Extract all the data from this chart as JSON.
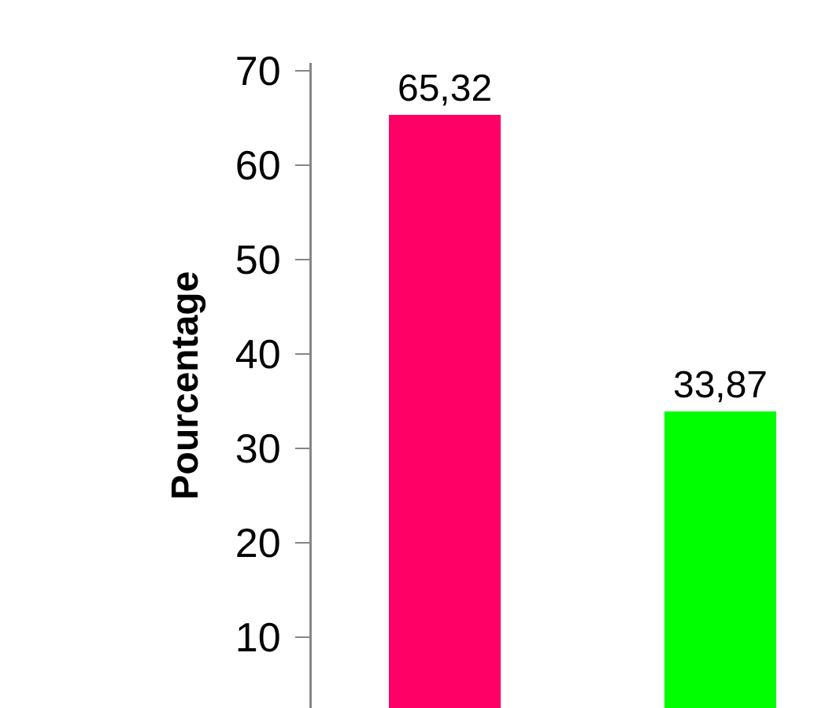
{
  "chart_data": {
    "type": "bar",
    "ylabel": "Pourcentage",
    "categories": [
      null,
      null
    ],
    "values": [
      65.32,
      33.87
    ],
    "colors": [
      "#ff0066",
      "#00ff00"
    ],
    "value_labels": [
      "65,32",
      "33,87"
    ],
    "ylim": [
      2.5,
      70.8
    ],
    "yticks": [
      10,
      20,
      30,
      40,
      50,
      60,
      70
    ],
    "grid": false,
    "legend": false
  }
}
